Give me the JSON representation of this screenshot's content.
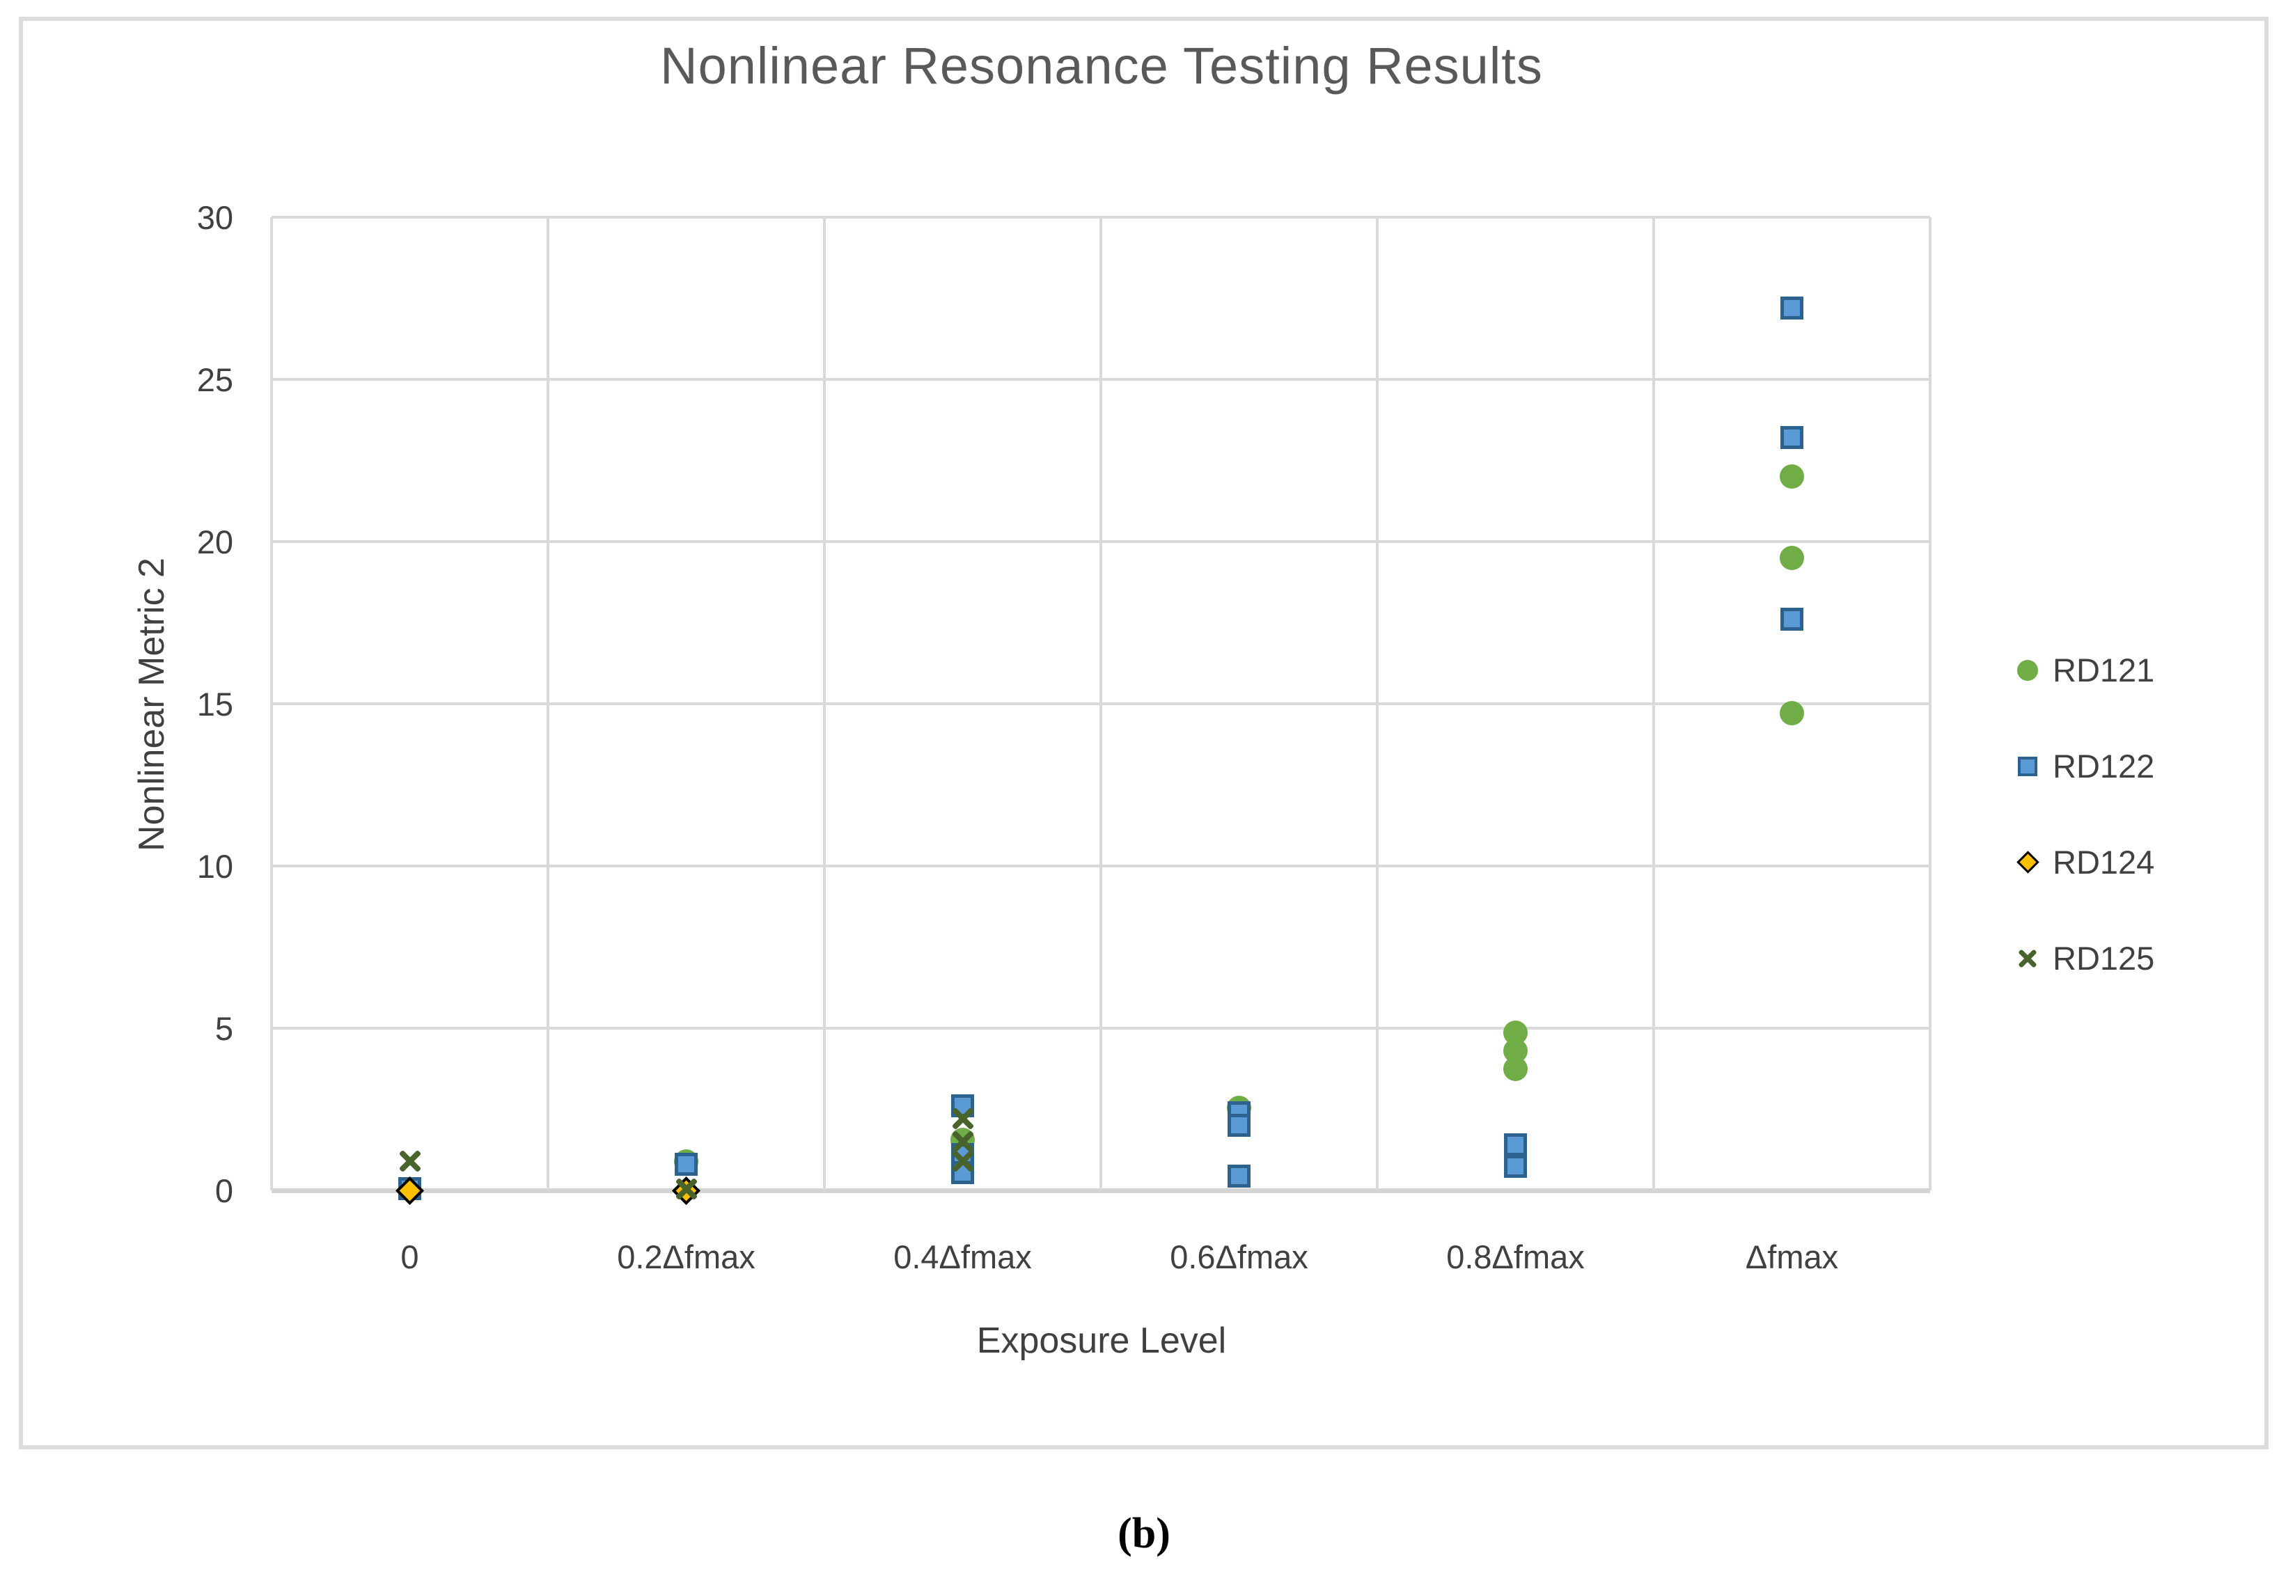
{
  "figure": {
    "caption": "(b)"
  },
  "chart_data": {
    "type": "scatter",
    "title": "Nonlinear Resonance Testing Results",
    "xlabel": "Exposure Level",
    "ylabel": "Nonlinear Metric 2",
    "ylim": [
      0,
      30
    ],
    "y_tick_step": 5,
    "grid": true,
    "legend_position": "right",
    "categories": [
      "0",
      "0.2Δfmax",
      "0.4Δfmax",
      "0.6Δfmax",
      "0.8Δfmax",
      "Δfmax"
    ],
    "series": [
      {
        "name": "RD121",
        "marker": "circle",
        "color": "#70AD47",
        "points": [
          {
            "x": "0.2Δfmax",
            "y": 0.9
          },
          {
            "x": "0.4Δfmax",
            "y": 1.55
          },
          {
            "x": "0.6Δfmax",
            "y": 2.55
          },
          {
            "x": "0.8Δfmax",
            "y": 4.85
          },
          {
            "x": "0.8Δfmax",
            "y": 4.3
          },
          {
            "x": "0.8Δfmax",
            "y": 3.75
          },
          {
            "x": "Δfmax",
            "y": 22.0
          },
          {
            "x": "Δfmax",
            "y": 19.5
          },
          {
            "x": "Δfmax",
            "y": 14.7
          }
        ]
      },
      {
        "name": "RD122",
        "marker": "square",
        "color": "#5B9BD5",
        "border_color": "#2D628F",
        "points": [
          {
            "x": "0",
            "y": 0.05
          },
          {
            "x": "0.2Δfmax",
            "y": 0.8
          },
          {
            "x": "0.4Δfmax",
            "y": 2.6
          },
          {
            "x": "0.4Δfmax",
            "y": 1.1
          },
          {
            "x": "0.4Δfmax",
            "y": 0.55
          },
          {
            "x": "0.6Δfmax",
            "y": 2.4
          },
          {
            "x": "0.6Δfmax",
            "y": 2.0
          },
          {
            "x": "0.6Δfmax",
            "y": 0.45
          },
          {
            "x": "0.8Δfmax",
            "y": 1.4
          },
          {
            "x": "0.8Δfmax",
            "y": 0.75
          },
          {
            "x": "Δfmax",
            "y": 27.2
          },
          {
            "x": "Δfmax",
            "y": 23.2
          },
          {
            "x": "Δfmax",
            "y": 17.6
          }
        ]
      },
      {
        "name": "RD124",
        "marker": "diamond",
        "color": "#FFC000",
        "border_color": "#000000",
        "points": [
          {
            "x": "0",
            "y": 0.0
          },
          {
            "x": "0.2Δfmax",
            "y": 0.0
          }
        ]
      },
      {
        "name": "RD125",
        "marker": "x",
        "color": "#48632C",
        "points": [
          {
            "x": "0",
            "y": 0.9
          },
          {
            "x": "0.2Δfmax",
            "y": 0.05
          },
          {
            "x": "0.4Δfmax",
            "y": 2.2
          },
          {
            "x": "0.4Δfmax",
            "y": 1.5
          },
          {
            "x": "0.4Δfmax",
            "y": 0.9
          }
        ]
      }
    ]
  }
}
